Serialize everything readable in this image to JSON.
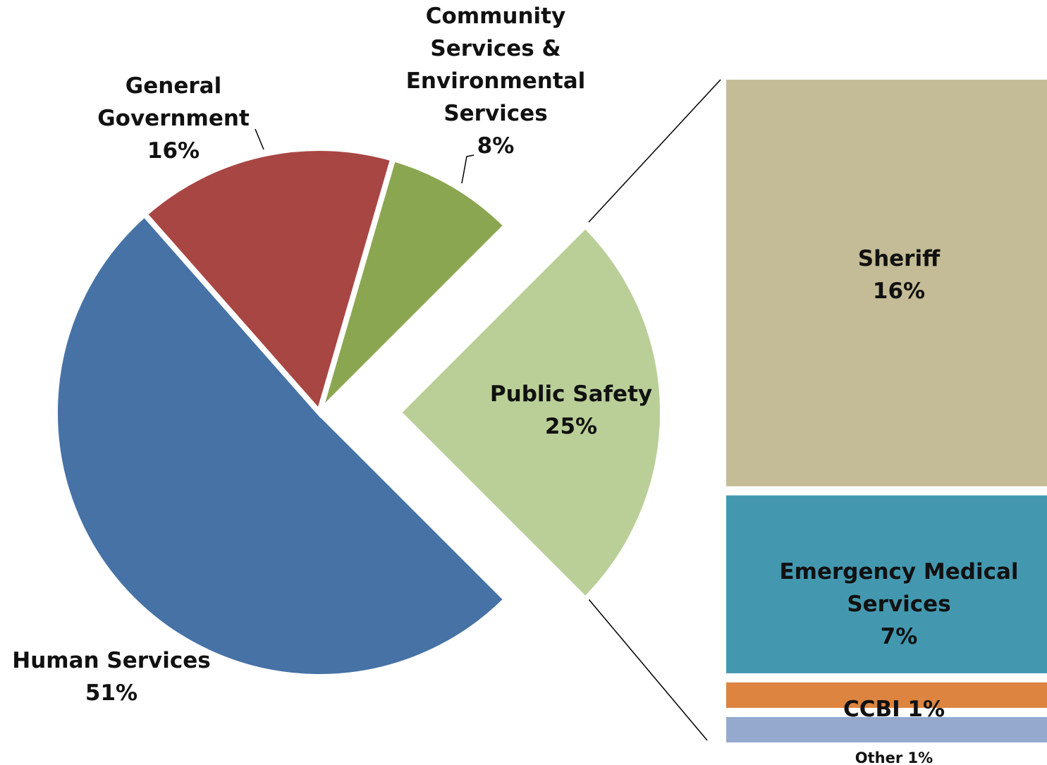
{
  "chart_data": [
    {
      "type": "pie",
      "categories": [
        "Public Safety",
        "Human Services",
        "General Government",
        "Community Services & Environmental Services"
      ],
      "values": [
        25,
        51,
        16,
        8
      ],
      "value_labels": [
        "25%",
        "51%",
        "16%",
        "8%"
      ],
      "colors": [
        "#bacf98",
        "#4672a6",
        "#a84644",
        "#8ba650"
      ],
      "exploded": "Public Safety"
    },
    {
      "type": "bar",
      "categories": [
        "Sheriff",
        "Emergency Medical Services",
        "CCBI",
        "Other"
      ],
      "values": [
        16,
        7,
        1,
        1
      ],
      "value_labels": [
        "16%",
        "7%",
        "1%",
        "1%"
      ],
      "colors": [
        "#c4bc96",
        "#4398b0",
        "#dc8440",
        "#95a9cf"
      ]
    }
  ]
}
